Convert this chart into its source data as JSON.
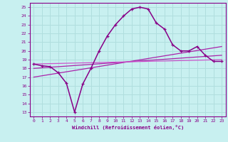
{
  "bg_color": "#c8f0f0",
  "grid_color": "#b0dede",
  "xlabel": "Windchill (Refroidissement éolien,°C)",
  "ylim": [
    12.5,
    25.5
  ],
  "xlim": [
    -0.5,
    23.5
  ],
  "yticks": [
    13,
    14,
    15,
    16,
    17,
    18,
    19,
    20,
    21,
    22,
    23,
    24,
    25
  ],
  "xticks": [
    0,
    1,
    2,
    3,
    4,
    5,
    6,
    7,
    8,
    9,
    10,
    11,
    12,
    13,
    14,
    15,
    16,
    17,
    18,
    19,
    20,
    21,
    22,
    23
  ],
  "curve_x": [
    0,
    1,
    2,
    3,
    4,
    5,
    6,
    7,
    8,
    9,
    10,
    11,
    12,
    13,
    14,
    15,
    16,
    17,
    18,
    19,
    20,
    21,
    22,
    23
  ],
  "curve_y": [
    18.5,
    18.3,
    18.2,
    17.5,
    16.3,
    13.0,
    16.2,
    18.0,
    20.0,
    21.7,
    23.0,
    24.0,
    24.8,
    25.0,
    24.8,
    23.2,
    22.5,
    20.7,
    20.0,
    20.0,
    20.5,
    19.5,
    18.8,
    18.8
  ],
  "line1_x": [
    0,
    23
  ],
  "line1_y": [
    18.5,
    19.0
  ],
  "line2_x": [
    0,
    23
  ],
  "line2_y": [
    18.0,
    19.5
  ],
  "line3_x": [
    0,
    23
  ],
  "line3_y": [
    17.0,
    20.5
  ],
  "purple_dark": "#880088",
  "purple_mid": "#aa22aa",
  "purple_light": "#cc55cc"
}
